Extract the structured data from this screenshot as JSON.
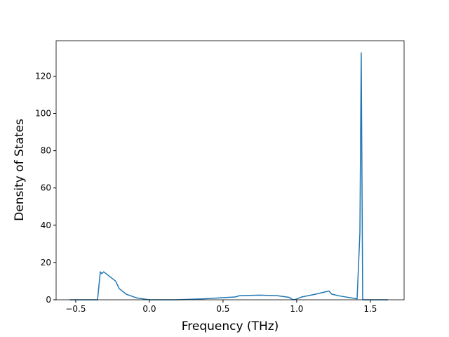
{
  "chart_data": {
    "type": "line",
    "x_label": "Frequency (THz)",
    "y_label": "Density of States",
    "x": [
      -0.54,
      -0.352,
      -0.333,
      -0.324,
      -0.31,
      -0.229,
      -0.205,
      -0.157,
      -0.086,
      0,
      0.176,
      0.367,
      0.581,
      0.614,
      0.748,
      0.867,
      0.948,
      0.976,
      0.995,
      1.033,
      1.129,
      1.219,
      1.238,
      1.295,
      1.41,
      1.429,
      1.438,
      1.448,
      1.619
    ],
    "series": [
      {
        "color": "#1f77b4",
        "values": [
          0,
          0,
          15,
          14,
          15,
          10,
          6,
          3,
          1,
          0,
          0,
          0.5,
          1.5,
          2.2,
          2.5,
          2.2,
          1.3,
          0,
          0.3,
          1.5,
          3,
          4.7,
          3,
          2,
          0.5,
          36,
          132.5,
          0,
          0
        ]
      }
    ],
    "xlim": [
      -0.633,
      1.729
    ],
    "ylim": [
      0,
      139
    ],
    "xticks": [
      {
        "value": -0.5,
        "label": "−0.5"
      },
      {
        "value": 0,
        "label": "0.0"
      },
      {
        "value": 0.5,
        "label": "0.5"
      },
      {
        "value": 1,
        "label": "1.0"
      },
      {
        "value": 1.5,
        "label": "1.5"
      }
    ],
    "yticks": [
      0,
      20,
      40,
      60,
      80,
      100,
      120
    ]
  }
}
